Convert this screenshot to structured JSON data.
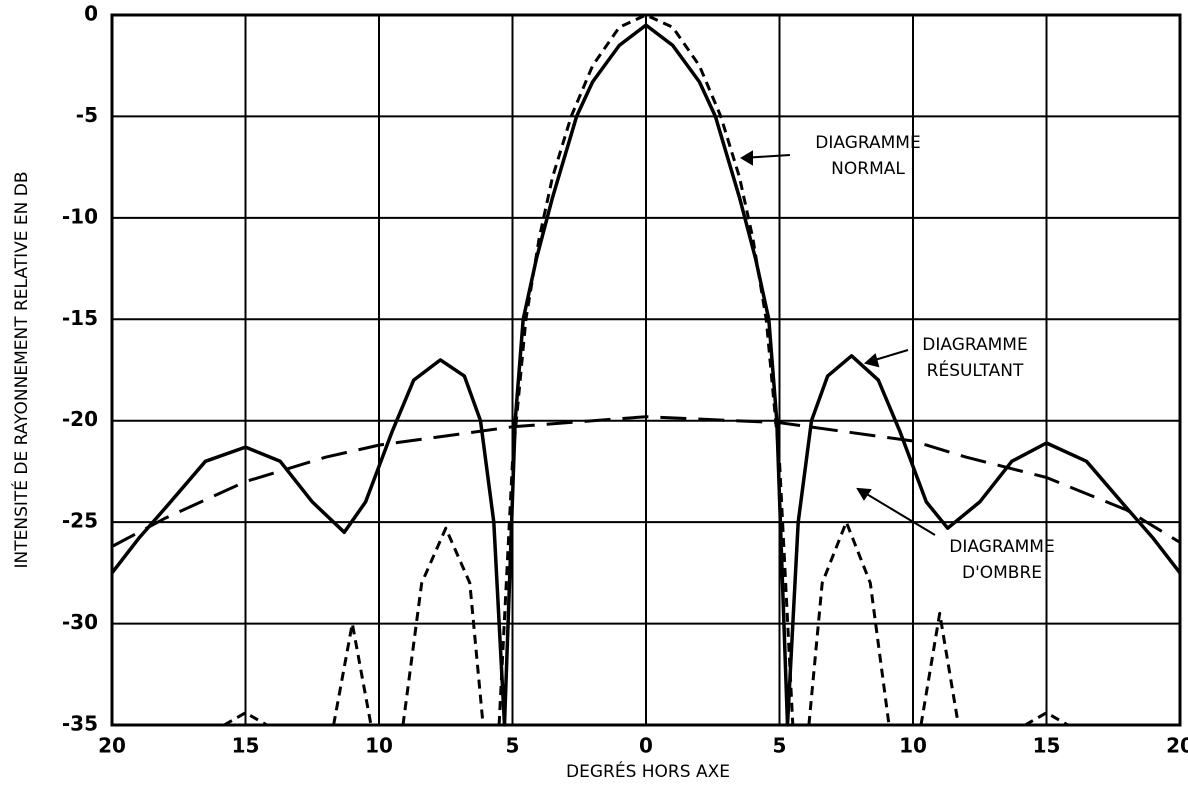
{
  "chart_data": {
    "type": "line",
    "xlabel": "DEGRÉS HORS AXE",
    "ylabel": "INTENSITÉ DE RAYONNEMENT RELATIVE EN DB",
    "xlim": [
      -20,
      20
    ],
    "ylim": [
      -35,
      0
    ],
    "xticks": [
      {
        "value": -20,
        "label": "20"
      },
      {
        "value": -15,
        "label": "15"
      },
      {
        "value": -10,
        "label": "10"
      },
      {
        "value": -5,
        "label": "5"
      },
      0,
      5,
      10,
      15,
      20
    ],
    "yticks": [
      0,
      -5,
      -10,
      -15,
      -20,
      -25,
      -30,
      -35
    ],
    "grid": true,
    "series": [
      {
        "style": "solid",
        "color": "#000000",
        "x": [
          -20,
          -19,
          -18,
          -16.5,
          -15,
          -13.7,
          -12.5,
          -11.3,
          -10.5,
          -9.5,
          -8.7,
          -7.7,
          -6.8,
          -6.2,
          -5.7,
          -5.3,
          -4.9,
          -4.6,
          -4.1,
          -3.5,
          -2.6,
          -2,
          -1,
          0,
          1,
          2,
          2.6,
          3.5,
          4.1,
          4.6,
          4.9,
          5.3,
          5.7,
          6.2,
          6.8,
          7.7,
          8.7,
          9.5,
          10.5,
          11.3,
          12.5,
          13.7,
          15,
          16.5,
          18,
          19,
          20
        ],
        "values": [
          -27.5,
          -25.8,
          -24.3,
          -22,
          -21.3,
          -22,
          -24,
          -25.5,
          -24,
          -20.5,
          -18,
          -17,
          -17.8,
          -20,
          -25,
          -35,
          -20,
          -15,
          -12,
          -9,
          -5,
          -3.3,
          -1.5,
          -0.5,
          -1.5,
          -3.3,
          -5,
          -9,
          -12,
          -15,
          -20,
          -35,
          -25,
          -20,
          -17.8,
          -16.8,
          -18,
          -20.5,
          -24,
          -25.3,
          -24,
          -22,
          -21.1,
          -22,
          -24.3,
          -25.8,
          -27.5
        ]
      },
      {
        "style": "short-dash",
        "color": "#000000",
        "x": [
          -15.8,
          -15,
          -14.2,
          null,
          -11.7,
          -11,
          -10.3,
          null,
          -9.1,
          -8.4,
          -7.5,
          -6.6,
          -6.1,
          null,
          -5.5,
          -5,
          -4.5,
          -4,
          -3.5,
          -2.8,
          -2,
          -1,
          0,
          1,
          2,
          2.8,
          3.5,
          4,
          4.5,
          5,
          5.5,
          null,
          6.1,
          6.6,
          7.5,
          8.4,
          9.1,
          null,
          10.3,
          11,
          11.7,
          null,
          14.2,
          15,
          15.8
        ],
        "values": [
          -35,
          -34.4,
          -35,
          null,
          -35,
          -30,
          -35,
          null,
          -35,
          -28,
          -25.3,
          -28,
          -35,
          null,
          -35,
          -22,
          -15,
          -11,
          -8,
          -5,
          -2.5,
          -0.6,
          0,
          -0.6,
          -2.5,
          -5,
          -8,
          -11,
          -15,
          -22,
          -35,
          null,
          -35,
          -28,
          -25,
          -28,
          -35,
          null,
          -35,
          -29.5,
          -35,
          null,
          -35,
          -34.4,
          -35
        ]
      },
      {
        "style": "long-dash",
        "color": "#000000",
        "x": [
          -20,
          -18,
          -15,
          -12,
          -10,
          -5,
          0,
          5,
          10,
          12,
          15,
          18,
          20
        ],
        "values": [
          -26.2,
          -24.8,
          -23,
          -21.8,
          -21.2,
          -20.3,
          -19.8,
          -20.1,
          -21,
          -21.8,
          -22.8,
          -24.4,
          -26
        ]
      }
    ],
    "annotations": [
      {
        "lines": [
          "DIAGRAMME",
          "NORMAL"
        ]
      },
      {
        "lines": [
          "DIAGRAMME",
          "RÉSULTANT"
        ]
      },
      {
        "lines": [
          "DIAGRAMME",
          "D'OMBRE"
        ]
      }
    ]
  }
}
